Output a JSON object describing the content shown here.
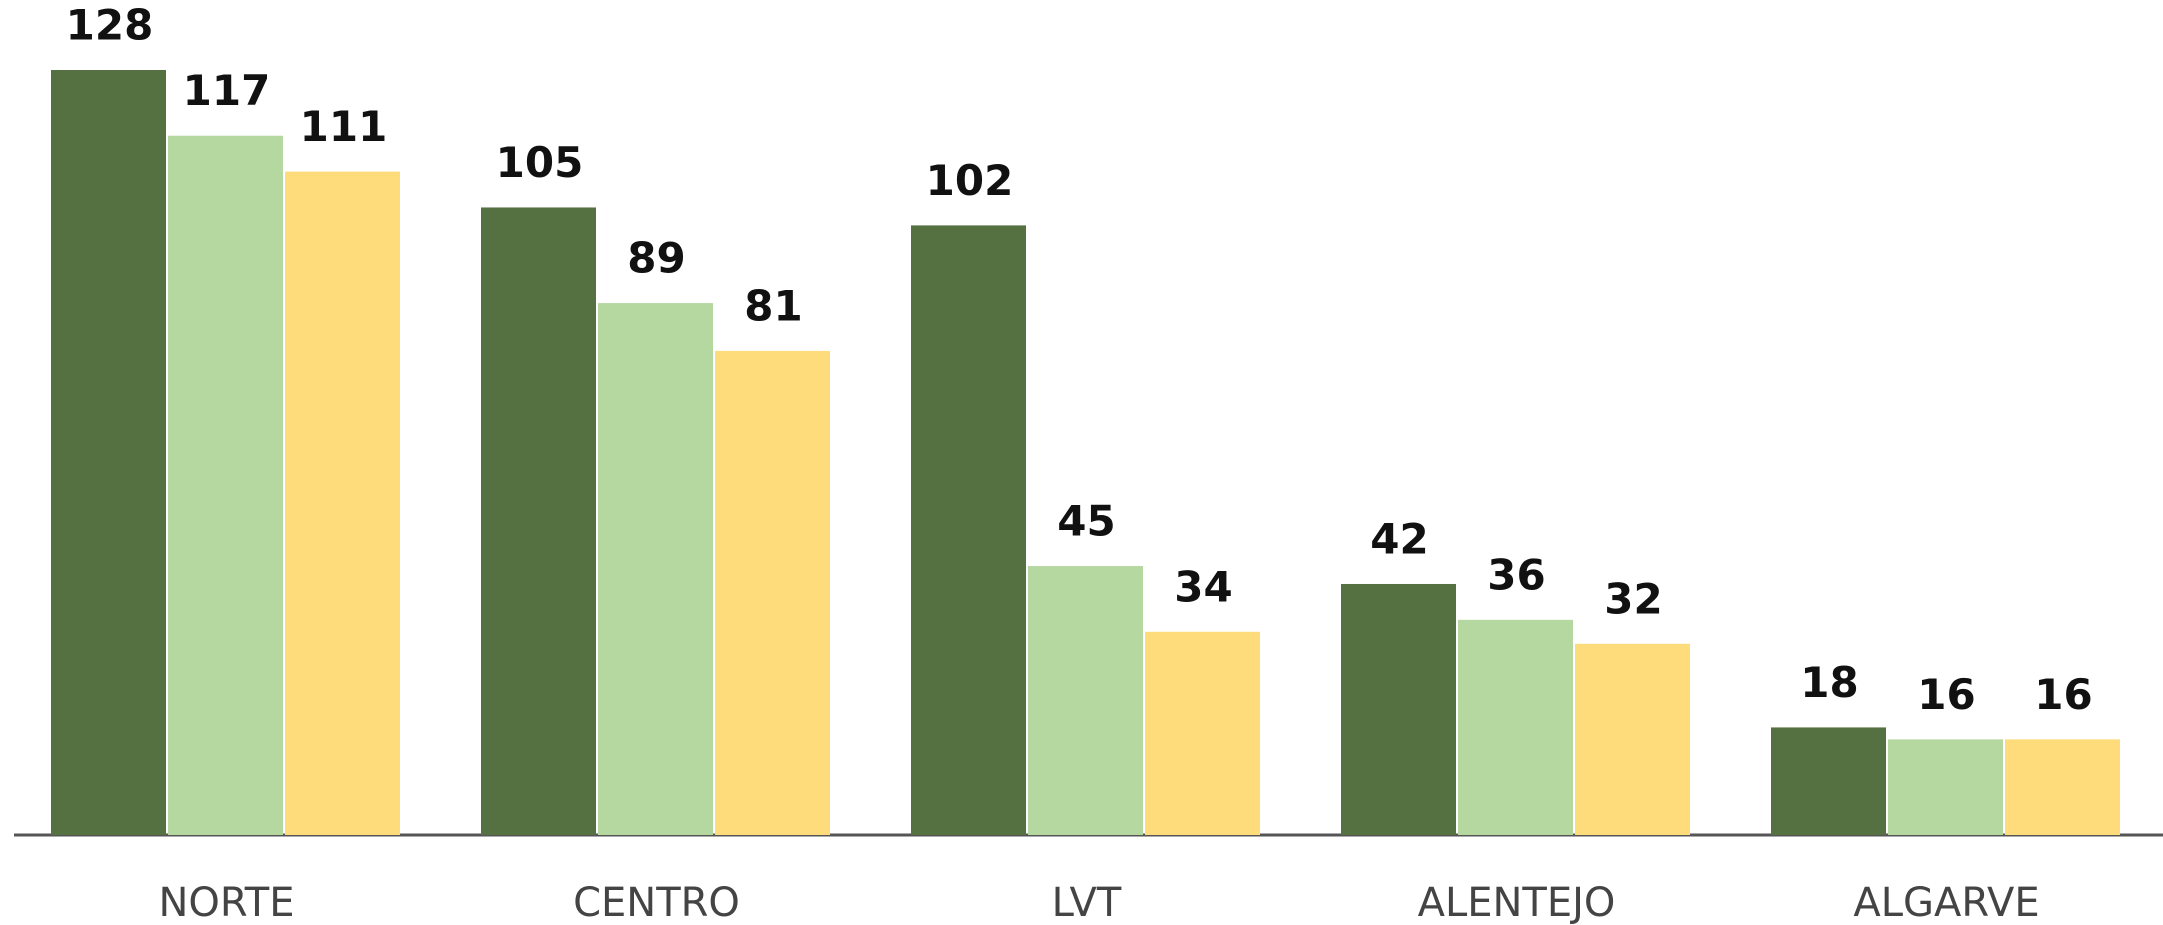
{
  "chart_data": {
    "type": "bar",
    "categories": [
      "NORTE",
      "CENTRO",
      "LVT",
      "ALENTEJO",
      "ALGARVE"
    ],
    "series": [
      {
        "color": "#557142",
        "values": [
          128,
          105,
          102,
          42,
          18
        ]
      },
      {
        "color": "#b5d7a0",
        "values": [
          117,
          89,
          45,
          36,
          16
        ]
      },
      {
        "color": "#fedb7b",
        "values": [
          111,
          81,
          34,
          32,
          16
        ]
      }
    ],
    "ylim": [
      0,
      128
    ]
  }
}
